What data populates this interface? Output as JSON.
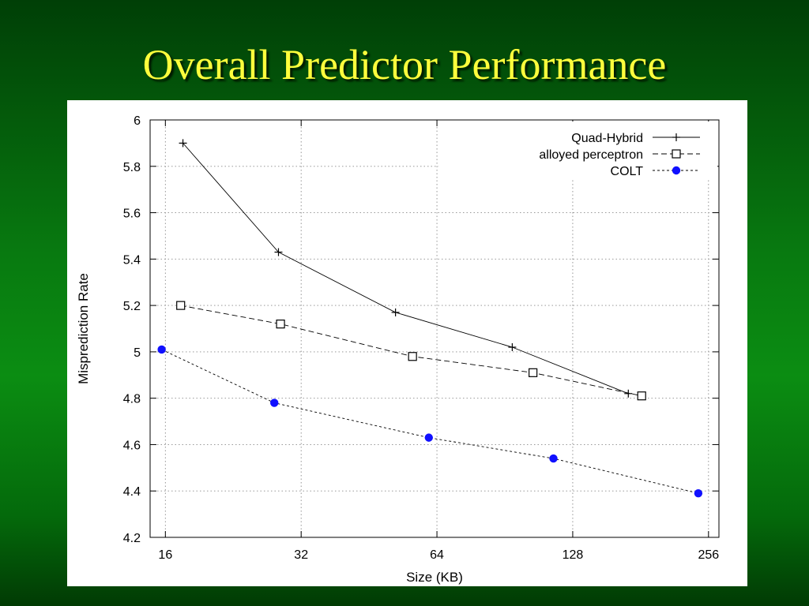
{
  "slide": {
    "title": "Overall Predictor Performance"
  },
  "chart_data": {
    "type": "line",
    "title": "",
    "xlabel": "Size (KB)",
    "ylabel": "Misprediction Rate",
    "xscale": "log2",
    "xlim": [
      14.8,
      270
    ],
    "ylim": [
      4.2,
      6
    ],
    "x_ticks": [
      16,
      32,
      64,
      128,
      256
    ],
    "x_tick_labels": [
      "16",
      "32",
      "64",
      "128",
      "256"
    ],
    "y_ticks": [
      4.2,
      4.4,
      4.6,
      4.8,
      5,
      5.2,
      5.4,
      5.6,
      5.8,
      6
    ],
    "y_tick_labels": [
      "4.2",
      "4.4",
      "4.6",
      "4.8",
      "5",
      "5.2",
      "5.4",
      "5.6",
      "5.8",
      "6"
    ],
    "grid": true,
    "legend_position": "top-right",
    "series": [
      {
        "name": "Quad-Hybrid",
        "marker": "plus",
        "line": "solid",
        "color": "#000000",
        "points": [
          [
            17.5,
            5.9
          ],
          [
            28.5,
            5.43
          ],
          [
            51.8,
            5.17
          ],
          [
            94,
            5.02
          ],
          [
            170,
            4.82
          ]
        ]
      },
      {
        "name": "alloyed perceptron",
        "marker": "open-square",
        "line": "dashed",
        "color": "#000000",
        "points": [
          [
            17.3,
            5.2
          ],
          [
            28.8,
            5.12
          ],
          [
            56.5,
            4.98
          ],
          [
            104.5,
            4.91
          ],
          [
            182,
            4.81
          ]
        ]
      },
      {
        "name": "COLT",
        "marker": "filled-circle",
        "line": "dotted",
        "color": "#1010ff",
        "points": [
          [
            15.7,
            5.01
          ],
          [
            27.9,
            4.78
          ],
          [
            61.4,
            4.63
          ],
          [
            116,
            4.54
          ],
          [
            243,
            4.39
          ]
        ]
      }
    ]
  }
}
